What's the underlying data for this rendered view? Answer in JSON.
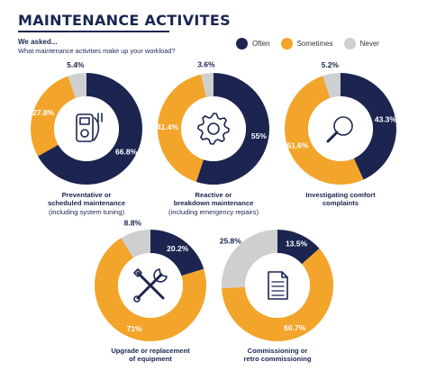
{
  "title": "MAINTENANCE ACTIVITES",
  "asked": "We asked...",
  "question": "What maintenance activities make up your workload?",
  "legend": [
    {
      "label": "Often",
      "color": "#1b2550"
    },
    {
      "label": "Sometimes",
      "color": "#f2a52a"
    },
    {
      "label": "Never",
      "color": "#cfcfcf"
    }
  ],
  "chart_data": [
    {
      "type": "pie",
      "categories": [
        "Often",
        "Sometimes",
        "Never"
      ],
      "values": [
        66.8,
        27.8,
        5.4
      ],
      "labels": [
        "66.8%",
        "27.8%",
        "5.4%"
      ],
      "icon": "multimeter-icon",
      "caption_bold": [
        "Preventative or",
        "scheduled maintenance"
      ],
      "caption_sub": "(including system tuning)"
    },
    {
      "type": "pie",
      "categories": [
        "Often",
        "Sometimes",
        "Never"
      ],
      "values": [
        55,
        41.4,
        3.6
      ],
      "labels": [
        "55%",
        "41.4%",
        "3.6%"
      ],
      "icon": "gear-icon",
      "caption_bold": [
        "Reactive or",
        "breakdown maintenance"
      ],
      "caption_sub": "(including emergency repairs)"
    },
    {
      "type": "pie",
      "categories": [
        "Often",
        "Sometimes",
        "Never"
      ],
      "values": [
        43.3,
        51.6,
        5.2
      ],
      "labels": [
        "43.3%",
        "51.6%",
        "5.2%"
      ],
      "icon": "magnifier-icon",
      "caption_bold": [
        "Investigating comfort",
        "complaints"
      ],
      "caption_sub": ""
    },
    {
      "type": "pie",
      "categories": [
        "Often",
        "Sometimes",
        "Never"
      ],
      "values": [
        20.2,
        71,
        8.8
      ],
      "labels": [
        "20.2%",
        "71%",
        "8.8%"
      ],
      "icon": "tools-icon",
      "caption_bold": [
        "Upgrade or replacement",
        "of equipment"
      ],
      "caption_sub": ""
    },
    {
      "type": "pie",
      "categories": [
        "Often",
        "Sometimes",
        "Never"
      ],
      "values": [
        13.5,
        60.7,
        25.8
      ],
      "labels": [
        "13.5%",
        "60.7%",
        "25.8%"
      ],
      "icon": "document-icon",
      "caption_bold": [
        "Commissioning or",
        "retro commissioning"
      ],
      "caption_sub": ""
    }
  ]
}
